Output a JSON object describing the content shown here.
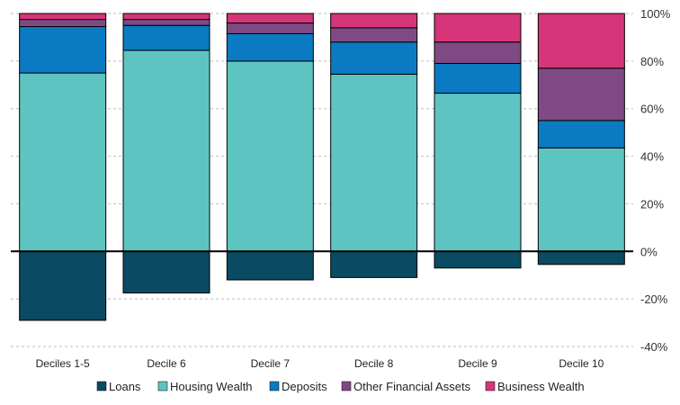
{
  "chart_data": {
    "type": "bar",
    "stacked": true,
    "title": "",
    "xlabel": "",
    "ylabel": "",
    "ylim": [
      -40,
      100
    ],
    "y_ticks": [
      -40,
      -20,
      0,
      20,
      40,
      60,
      80,
      100
    ],
    "y_tick_labels": [
      "-40%",
      "-20%",
      "0%",
      "20%",
      "40%",
      "60%",
      "80%",
      "100%"
    ],
    "y_axis_position": "right",
    "grid": true,
    "legend_position": "bottom",
    "categories": [
      "Deciles 1-5",
      "Decile 6",
      "Decile 7",
      "Decile 8",
      "Decile 9",
      "Decile 10"
    ],
    "series": [
      {
        "name": "Loans",
        "color": "#0b4a63",
        "values": [
          -29,
          -17.5,
          -12,
          -11,
          -7,
          -5.5
        ]
      },
      {
        "name": "Housing Wealth",
        "color": "#5ec4c2",
        "values": [
          75,
          84.5,
          80,
          74.5,
          66.5,
          43.5
        ]
      },
      {
        "name": "Deposits",
        "color": "#0a7bc2",
        "values": [
          19.5,
          10.5,
          11.5,
          13.5,
          12.5,
          11.5
        ]
      },
      {
        "name": "Other Financial Assets",
        "color": "#7f4a84",
        "values": [
          3,
          2.5,
          4.5,
          6,
          9,
          22
        ]
      },
      {
        "name": "Business Wealth",
        "color": "#d6357a",
        "values": [
          2.5,
          2.5,
          4,
          6,
          12,
          23
        ]
      }
    ]
  }
}
